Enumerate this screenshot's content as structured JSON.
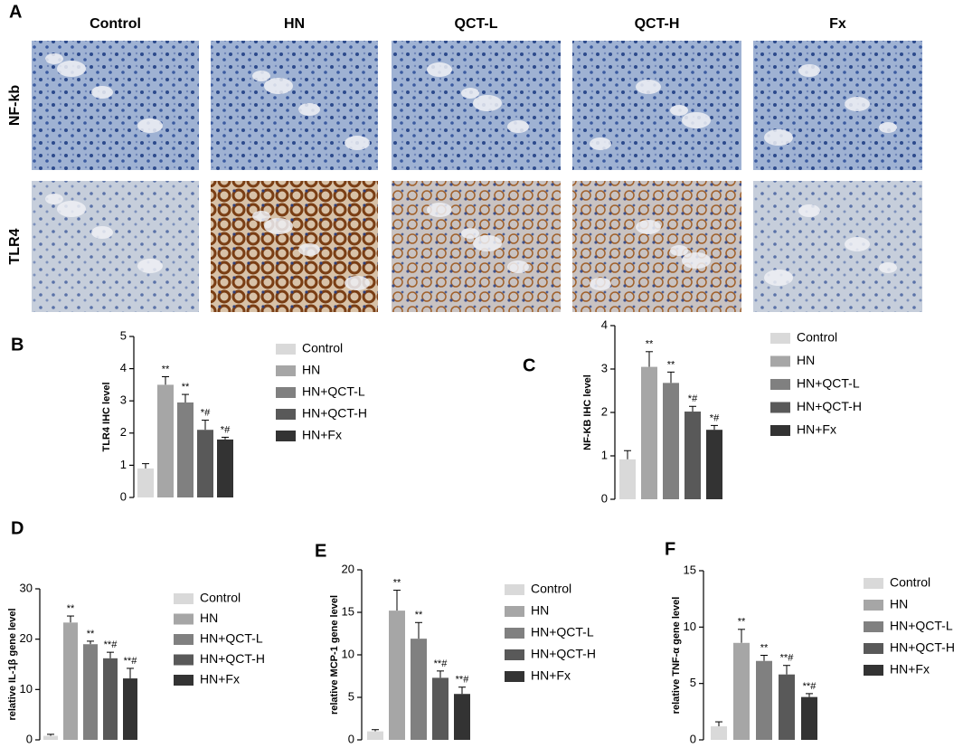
{
  "panel_a": {
    "label": "A",
    "columns": [
      "Control",
      "HN",
      "QCT-L",
      "QCT-H",
      "Fx"
    ],
    "rows": [
      "NF-kb",
      "TLR4"
    ]
  },
  "chart_data": [
    {
      "type": "bar",
      "panel": "B",
      "ylabel": "TLR4 IHC level",
      "categories": [
        "Control",
        "HN",
        "HN+QCT-L",
        "HN+QCT-H",
        "HN+Fx"
      ],
      "colors": [
        "#d9d9d9",
        "#a6a6a6",
        "#808080",
        "#595959",
        "#333333"
      ],
      "values": [
        0.9,
        3.5,
        2.95,
        2.1,
        1.8
      ],
      "errors": [
        0.15,
        0.25,
        0.25,
        0.3,
        0.07
      ],
      "significance": [
        null,
        "**",
        "**",
        "*#",
        "*#"
      ],
      "ylim": [
        0,
        5
      ],
      "yticks": [
        0,
        1,
        2,
        3,
        4,
        5
      ]
    },
    {
      "type": "bar",
      "panel": "C",
      "ylabel": "NF-KB IHC level",
      "categories": [
        "Control",
        "HN",
        "HN+QCT-L",
        "HN+QCT-H",
        "HN+Fx"
      ],
      "colors": [
        "#d9d9d9",
        "#a6a6a6",
        "#808080",
        "#595959",
        "#333333"
      ],
      "values": [
        0.92,
        3.05,
        2.68,
        2.02,
        1.6
      ],
      "errors": [
        0.2,
        0.35,
        0.25,
        0.12,
        0.1
      ],
      "significance": [
        null,
        "**",
        "**",
        "*#",
        "*#"
      ],
      "ylim": [
        0,
        4
      ],
      "yticks": [
        0,
        1,
        2,
        3,
        4
      ]
    },
    {
      "type": "bar",
      "panel": "D",
      "ylabel": "relative IL-1β gene level",
      "categories": [
        "Control",
        "HN",
        "HN+QCT-L",
        "HN+QCT-H",
        "HN+Fx"
      ],
      "colors": [
        "#d9d9d9",
        "#a6a6a6",
        "#808080",
        "#595959",
        "#333333"
      ],
      "values": [
        0.8,
        23.3,
        19.0,
        16.2,
        12.2
      ],
      "errors": [
        0.3,
        1.3,
        0.6,
        1.2,
        2.0
      ],
      "significance": [
        null,
        "**",
        "**",
        "**#",
        "**#"
      ],
      "ylim": [
        0,
        30
      ],
      "yticks": [
        0,
        10,
        20,
        30
      ]
    },
    {
      "type": "bar",
      "panel": "E",
      "ylabel": "relative MCP-1 gene level",
      "categories": [
        "Control",
        "HN",
        "HN+QCT-L",
        "HN+QCT-H",
        "HN+Fx"
      ],
      "colors": [
        "#d9d9d9",
        "#a6a6a6",
        "#808080",
        "#595959",
        "#333333"
      ],
      "values": [
        1.0,
        15.2,
        11.9,
        7.3,
        5.4
      ],
      "errors": [
        0.2,
        2.4,
        1.9,
        0.8,
        0.8
      ],
      "significance": [
        null,
        "**",
        "**",
        "**#",
        "**#"
      ],
      "ylim": [
        0,
        20
      ],
      "yticks": [
        0,
        5,
        10,
        15,
        20
      ]
    },
    {
      "type": "bar",
      "panel": "F",
      "ylabel": "relative TNF-α gene level",
      "categories": [
        "Control",
        "HN",
        "HN+QCT-L",
        "HN+QCT-H",
        "HN+Fx"
      ],
      "colors": [
        "#d9d9d9",
        "#a6a6a6",
        "#808080",
        "#595959",
        "#333333"
      ],
      "values": [
        1.2,
        8.6,
        7.0,
        5.8,
        3.8
      ],
      "errors": [
        0.4,
        1.2,
        0.5,
        0.8,
        0.3
      ],
      "significance": [
        null,
        "**",
        "**",
        "**#",
        "**#"
      ],
      "ylim": [
        0,
        15
      ],
      "yticks": [
        0,
        5,
        10,
        15
      ]
    }
  ]
}
